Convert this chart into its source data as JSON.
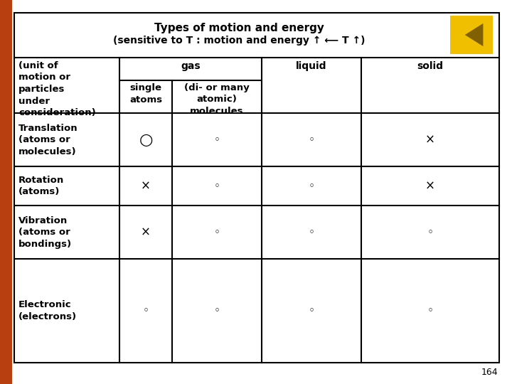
{
  "title_line1": "Types of motion and energy",
  "title_line2": "(sensitive to T : motion and energy ↑ ⟵ T ↑)",
  "background_color": "#ffffff",
  "border_color": "#000000",
  "left_bar_color": "#b84010",
  "page_number": "164",
  "rows": [
    {
      "label": "Translation\n(atoms or\nmolecules)",
      "single_atoms": "○",
      "di_molecules": "◦",
      "liquid": "◦",
      "solid": "×"
    },
    {
      "label": "Rotation\n(atoms)",
      "single_atoms": "×",
      "di_molecules": "◦",
      "liquid": "◦",
      "solid": "×"
    },
    {
      "label": "Vibration\n(atoms or\nbondings)",
      "single_atoms": "×",
      "di_molecules": "◦",
      "liquid": "◦",
      "solid": "◦"
    },
    {
      "label": "Electronic\n(electrons)",
      "single_atoms": "◦",
      "di_molecules": "◦",
      "liquid": "◦",
      "solid": "◦"
    }
  ],
  "gold_color": "#f0c000",
  "triangle_color": "#806000"
}
